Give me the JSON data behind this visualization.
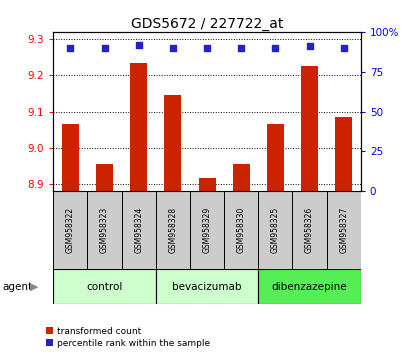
{
  "title": "GDS5672 / 227722_at",
  "samples": [
    "GSM958322",
    "GSM958323",
    "GSM958324",
    "GSM958328",
    "GSM958329",
    "GSM958330",
    "GSM958325",
    "GSM958326",
    "GSM958327"
  ],
  "red_values": [
    9.065,
    8.955,
    9.235,
    9.145,
    8.915,
    8.955,
    9.065,
    9.225,
    9.085
  ],
  "blue_values": [
    90,
    90,
    92,
    90,
    90,
    90,
    90,
    91,
    90
  ],
  "ylim_left": [
    8.88,
    9.32
  ],
  "ylim_right": [
    0,
    100
  ],
  "yticks_left": [
    8.9,
    9.0,
    9.1,
    9.2,
    9.3
  ],
  "yticks_right": [
    0,
    25,
    50,
    75,
    100
  ],
  "groups": [
    {
      "label": "control",
      "start": 0,
      "end": 3,
      "color": "#ccffcc"
    },
    {
      "label": "bevacizumab",
      "start": 3,
      "end": 6,
      "color": "#ccffcc"
    },
    {
      "label": "dibenzazepine",
      "start": 6,
      "end": 9,
      "color": "#55ee55"
    }
  ],
  "agent_label": "agent",
  "legend_red": "transformed count",
  "legend_blue": "percentile rank within the sample",
  "bar_color": "#cc2200",
  "dot_color": "#2222cc",
  "sample_box_color": "#cccccc",
  "grid_color": "#000000"
}
